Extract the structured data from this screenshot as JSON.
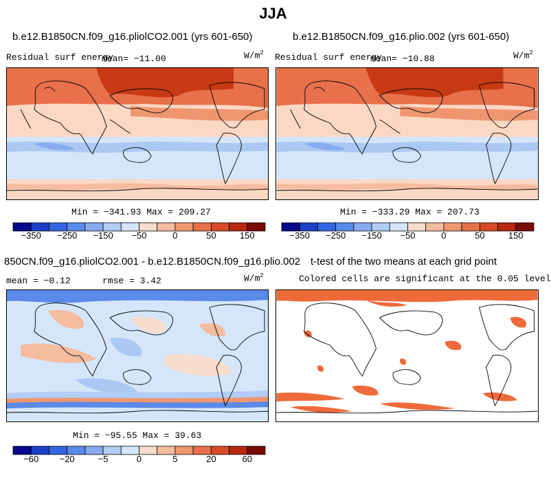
{
  "figure_title": "JJA",
  "panels": {
    "p1": {
      "title": "b.e12.B1850CN.f09_g16.pliolCO2.001 (yrs 601-650)",
      "left_label": "Residual surf energy",
      "mean_label": "mean= −11.00",
      "units": "W/m",
      "units_sup": "2",
      "stats": "Min = −341.93 Max = 209.27"
    },
    "p2": {
      "title": "b.e12.B1850CN.f09_g16.plio.002 (yrs 601-650)",
      "left_label": "Residual surf energy",
      "mean_label": "mean= −10.88",
      "units": "W/m",
      "units_sup": "2",
      "stats": "Min = −333.29 Max = 207.73"
    },
    "p3": {
      "title": "850CN.f09_g16.pliolCO2.001 - b.e12.B1850CN.f09_g16.plio.002",
      "mean_label": "mean =  −0.12",
      "rmse_label": "rmse =   3.42",
      "units": "W/m",
      "units_sup": "2",
      "stats": "Min = −95.55 Max = 39.63"
    },
    "p4": {
      "title": "t-test of the two means at each grid point",
      "subtitle": "Colored cells are significant at the 0.05 level"
    }
  },
  "chart_data": [
    {
      "type": "heatmap",
      "title": "b.e12.B1850CN.f09_g16.pliolCO2.001 (yrs 601-650)",
      "variable": "Residual surf energy",
      "units": "W/m2",
      "mean": -11.0,
      "min": -341.93,
      "max": 209.27,
      "colorbar_labels": [
        "−350",
        "−250",
        "−150",
        "−50",
        "0",
        "50",
        "150"
      ]
    },
    {
      "type": "heatmap",
      "title": "b.e12.B1850CN.f09_g16.plio.002 (yrs 601-650)",
      "variable": "Residual surf energy",
      "units": "W/m2",
      "mean": -10.88,
      "min": -333.29,
      "max": 207.73,
      "colorbar_labels": [
        "−350",
        "−250",
        "−150",
        "−50",
        "0",
        "50",
        "150"
      ]
    },
    {
      "type": "heatmap",
      "title": "850CN.f09_g16.pliolCO2.001 - b.e12.B1850CN.f09_g16.plio.002",
      "units": "W/m2",
      "mean": -0.12,
      "rmse": 3.42,
      "min": -95.55,
      "max": 39.63,
      "colorbar_labels": [
        "−60",
        "−20",
        "−5",
        "0",
        "5",
        "20",
        "60"
      ]
    },
    {
      "type": "heatmap",
      "title": "t-test of the two means at each grid point",
      "subtitle": "Colored cells are significant at the 0.05 level",
      "significance_level": 0.05
    }
  ],
  "colorbar_colors": [
    "#08088c",
    "#1c3fc8",
    "#3465e0",
    "#5a8aea",
    "#88aaf0",
    "#b2cdf6",
    "#d6e6fa",
    "#f6dccc",
    "#f5bca0",
    "#ef9670",
    "#e8704a",
    "#d84a28",
    "#b82810",
    "#7a0a04"
  ],
  "colors": {
    "warm_deep": "#c83a14",
    "warm_mid": "#e8704a",
    "warm_light": "#f5b090",
    "peach": "#fad8c4",
    "cool_light": "#d6e6fa",
    "cool_mid": "#aac8f2",
    "cool_deep": "#5a8aea",
    "signif": "#ef6a3a"
  }
}
